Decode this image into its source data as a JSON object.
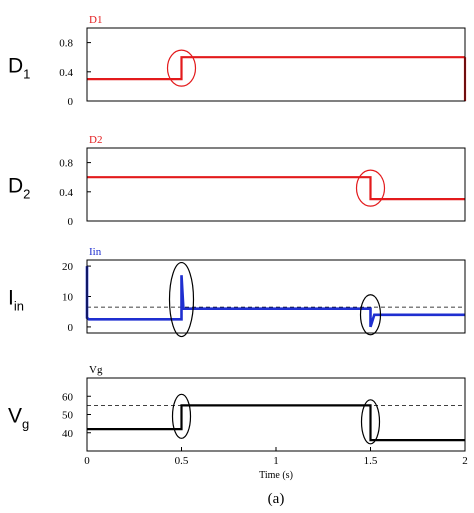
{
  "chart_data": [
    {
      "type": "line",
      "title": "D1",
      "row_label": {
        "main": "D",
        "sub": "1"
      },
      "color": "#e31a1c",
      "ylim": [
        0,
        1.0
      ],
      "yticks": [
        0,
        0.4,
        0.8
      ],
      "ytick_labels": [
        "0",
        "0.4",
        "0.8"
      ],
      "xlim": [
        0,
        2
      ],
      "show_xticks": false,
      "series": [
        {
          "x": [
            0,
            0.5,
            0.5,
            2.0
          ],
          "y": [
            0.3,
            0.3,
            0.6,
            0.6
          ],
          "end_drop": true
        }
      ],
      "annotations": [
        {
          "shape": "circle",
          "x": 0.5,
          "y": 0.45
        }
      ]
    },
    {
      "type": "line",
      "title": "D2",
      "row_label": {
        "main": "D",
        "sub": "2"
      },
      "color": "#e31a1c",
      "ylim": [
        0,
        1.0
      ],
      "yticks": [
        0,
        0.4,
        0.8
      ],
      "ytick_labels": [
        "0",
        "0.4",
        "0.8"
      ],
      "xlim": [
        0,
        2
      ],
      "show_xticks": false,
      "series": [
        {
          "x": [
            0,
            1.5,
            1.5,
            2.0
          ],
          "y": [
            0.6,
            0.6,
            0.3,
            0.3
          ]
        }
      ],
      "annotations": [
        {
          "shape": "circle",
          "x": 1.5,
          "y": 0.45
        }
      ]
    },
    {
      "type": "line",
      "title": "Iin",
      "row_label": {
        "main": "I",
        "sub": "in"
      },
      "color": "#1f2fd0",
      "ylim": [
        -2,
        22
      ],
      "yticks": [
        0,
        10,
        20
      ],
      "ytick_labels": [
        "0",
        "10",
        "20"
      ],
      "xlim": [
        0,
        2
      ],
      "show_xticks": false,
      "reference_line": 6.5,
      "series": [
        {
          "x": [
            0,
            0,
            0.01,
            0.5,
            0.5,
            0.51,
            0.52,
            1.5,
            1.5,
            1.52,
            1.55,
            2.0
          ],
          "y": [
            20,
            3,
            2.5,
            2.5,
            17,
            6,
            6,
            6,
            0,
            4,
            4,
            4
          ]
        }
      ],
      "annotations": [
        {
          "shape": "ellipse",
          "x": 0.5,
          "y": 9
        },
        {
          "shape": "ellipse",
          "x": 1.5,
          "y": 4
        }
      ]
    },
    {
      "type": "line",
      "title": "Vg",
      "row_label": {
        "main": "V",
        "sub": "g"
      },
      "color": "#000000",
      "ylim": [
        30,
        70
      ],
      "yticks": [
        40,
        50,
        60
      ],
      "ytick_labels": [
        "40",
        "50",
        "60"
      ],
      "xlim": [
        0,
        2
      ],
      "show_xticks": true,
      "xticks": [
        0,
        0.5,
        1,
        1.5,
        2
      ],
      "xtick_labels": [
        "0",
        "0.5",
        "1",
        "1.5",
        "2"
      ],
      "xlabel": "Time (s)",
      "reference_line": 55,
      "series": [
        {
          "x": [
            0,
            0.5,
            0.5,
            1.5,
            1.5,
            2.0
          ],
          "y": [
            42,
            42,
            55,
            55,
            36,
            36
          ]
        }
      ],
      "annotations": [
        {
          "shape": "ellipse",
          "x": 0.5,
          "y": 49
        },
        {
          "shape": "ellipse",
          "x": 1.5,
          "y": 46
        }
      ]
    }
  ],
  "caption": "(a)"
}
